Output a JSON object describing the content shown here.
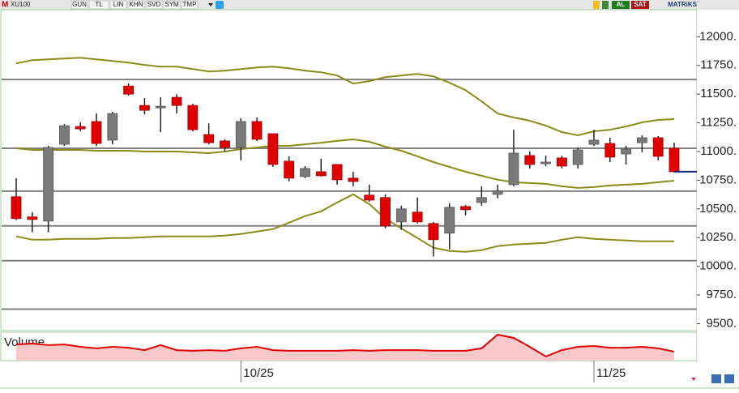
{
  "toolbar": {
    "logo": "M",
    "symbol": "XU100",
    "buttons": [
      "GUN",
      "TL",
      "LIN",
      "KHN",
      "SVD",
      "SYM",
      "TMP"
    ],
    "actions": [
      "AL",
      "SAT"
    ],
    "brand": "MATRiKS"
  },
  "chart_data": {
    "type": "candlestick",
    "categories": [
      null,
      null,
      null,
      null,
      null,
      null,
      null,
      null,
      null,
      null,
      null,
      null,
      null,
      null,
      "10/25",
      null,
      null,
      null,
      null,
      null,
      null,
      null,
      null,
      null,
      null,
      null,
      null,
      null,
      null,
      null,
      null,
      null,
      null,
      null,
      null,
      null,
      "11/25",
      null,
      null,
      null,
      null,
      null
    ],
    "open": [
      10606,
      10430,
      10394,
      11063,
      11218,
      11261,
      11099,
      11570,
      11401,
      11380,
      11472,
      11401,
      11148,
      11092,
      11035,
      11261,
      11155,
      10916,
      10782,
      10824,
      10887,
      10768,
      10620,
      10599,
      10387,
      10472,
      10373,
      10289,
      10521,
      10556,
      10627,
      10711,
      10965,
      10894,
      10944,
      10887,
      11063,
      11070,
      10979,
      11077,
      11120,
      11028
    ],
    "high": [
      10768,
      10472,
      11049,
      11239,
      11254,
      11331,
      11345,
      11592,
      11465,
      11472,
      11500,
      11415,
      11246,
      11106,
      11289,
      11296,
      11155,
      10958,
      10873,
      10937,
      10887,
      10824,
      10711,
      10627,
      10528,
      10599,
      10387,
      10549,
      10535,
      10697,
      10711,
      11190,
      11000,
      10965,
      10965,
      11035,
      11190,
      11120,
      11049,
      11141,
      11134,
      11077
    ],
    "low": [
      10401,
      10296,
      10296,
      11049,
      11176,
      11049,
      11063,
      11486,
      11324,
      11169,
      11331,
      11176,
      11063,
      11000,
      10923,
      11092,
      10866,
      10739,
      10768,
      10782,
      10711,
      10697,
      10563,
      10331,
      10317,
      10373,
      10085,
      10148,
      10444,
      10528,
      10592,
      10697,
      10852,
      10873,
      10852,
      10852,
      11049,
      10908,
      10887,
      10993,
      10923,
      10817
    ],
    "close": [
      10416,
      10408,
      11035,
      11225,
      11197,
      11070,
      11331,
      11500,
      11359,
      11394,
      11401,
      11190,
      11077,
      11035,
      11261,
      11106,
      10887,
      10768,
      10852,
      10789,
      10754,
      10739,
      10577,
      10352,
      10500,
      10387,
      10232,
      10514,
      10493,
      10599,
      10655,
      10986,
      10887,
      10908,
      10873,
      11014,
      11099,
      10951,
      11021,
      11120,
      10958,
      10824
    ],
    "up_color": "#7a7a7a",
    "down_color": "#e00000",
    "bands": [
      {
        "color": "#8b8b1a",
        "values": [
          11768,
          11796,
          11803,
          11810,
          11817,
          11803,
          11789,
          11775,
          11754,
          11739,
          11739,
          11718,
          11697,
          11704,
          11718,
          11732,
          11739,
          11725,
          11704,
          11690,
          11662,
          11592,
          11613,
          11648,
          11662,
          11676,
          11655,
          11599,
          11535,
          11437,
          11331,
          11296,
          11268,
          11225,
          11169,
          11141,
          11176,
          11190,
          11218,
          11254,
          11275,
          11282
        ]
      },
      {
        "color": "#8b8b1a",
        "values": [
          11028,
          11014,
          11014,
          11014,
          11014,
          11007,
          11007,
          11007,
          11000,
          11000,
          11000,
          10993,
          10986,
          11000,
          11021,
          11035,
          11049,
          11049,
          11063,
          11077,
          11092,
          11106,
          11085,
          11042,
          11007,
          10958,
          10908,
          10866,
          10824,
          10789,
          10754,
          10732,
          10725,
          10718,
          10697,
          10683,
          10690,
          10704,
          10711,
          10718,
          10732,
          10746
        ]
      },
      {
        "color": "#8b8b1a",
        "values": [
          10261,
          10232,
          10232,
          10239,
          10239,
          10239,
          10247,
          10247,
          10254,
          10261,
          10261,
          10261,
          10261,
          10268,
          10282,
          10303,
          10324,
          10380,
          10437,
          10479,
          10556,
          10627,
          10542,
          10416,
          10331,
          10247,
          10162,
          10134,
          10127,
          10141,
          10176,
          10190,
          10197,
          10204,
          10232,
          10254,
          10239,
          10232,
          10225,
          10218,
          10218,
          10218
        ]
      }
    ],
    "levels": {
      "color": "#808080",
      "values": [
        11627,
        11028,
        10655,
        10352,
        10049,
        9627
      ]
    },
    "last_price_color": "#1a237e",
    "ylim": [
      9440,
      12235
    ],
    "yticks": [
      {
        "value": 9500,
        "label": "9500."
      },
      {
        "value": 9750,
        "label": "9750."
      },
      {
        "value": 10000,
        "label": "10000."
      },
      {
        "value": 10250,
        "label": "10250."
      },
      {
        "value": 10500,
        "label": "10500."
      },
      {
        "value": 10750,
        "label": "10750."
      },
      {
        "value": 11000,
        "label": "11000."
      },
      {
        "value": 11250,
        "label": "11250."
      },
      {
        "value": 11500,
        "label": "11500."
      },
      {
        "value": 11750,
        "label": "11750."
      },
      {
        "value": 12000,
        "label": "12000."
      }
    ],
    "volume": {
      "title": "Volume",
      "color": "#e00000",
      "fill": "#f9c9c9",
      "ylim": [
        0,
        20
      ],
      "values": [
        11.4,
        12.0,
        10.9,
        11.4,
        9.7,
        8.6,
        9.7,
        9.1,
        7.4,
        10.9,
        7.4,
        6.9,
        7.4,
        6.9,
        8.6,
        9.7,
        7.4,
        6.9,
        6.9,
        6.9,
        6.9,
        7.4,
        6.9,
        7.4,
        7.4,
        7.4,
        6.9,
        6.9,
        6.9,
        8.6,
        18.3,
        16.0,
        9.7,
        2.9,
        7.4,
        9.7,
        10.3,
        9.1,
        9.1,
        9.7,
        8.6,
        6.3
      ]
    }
  }
}
